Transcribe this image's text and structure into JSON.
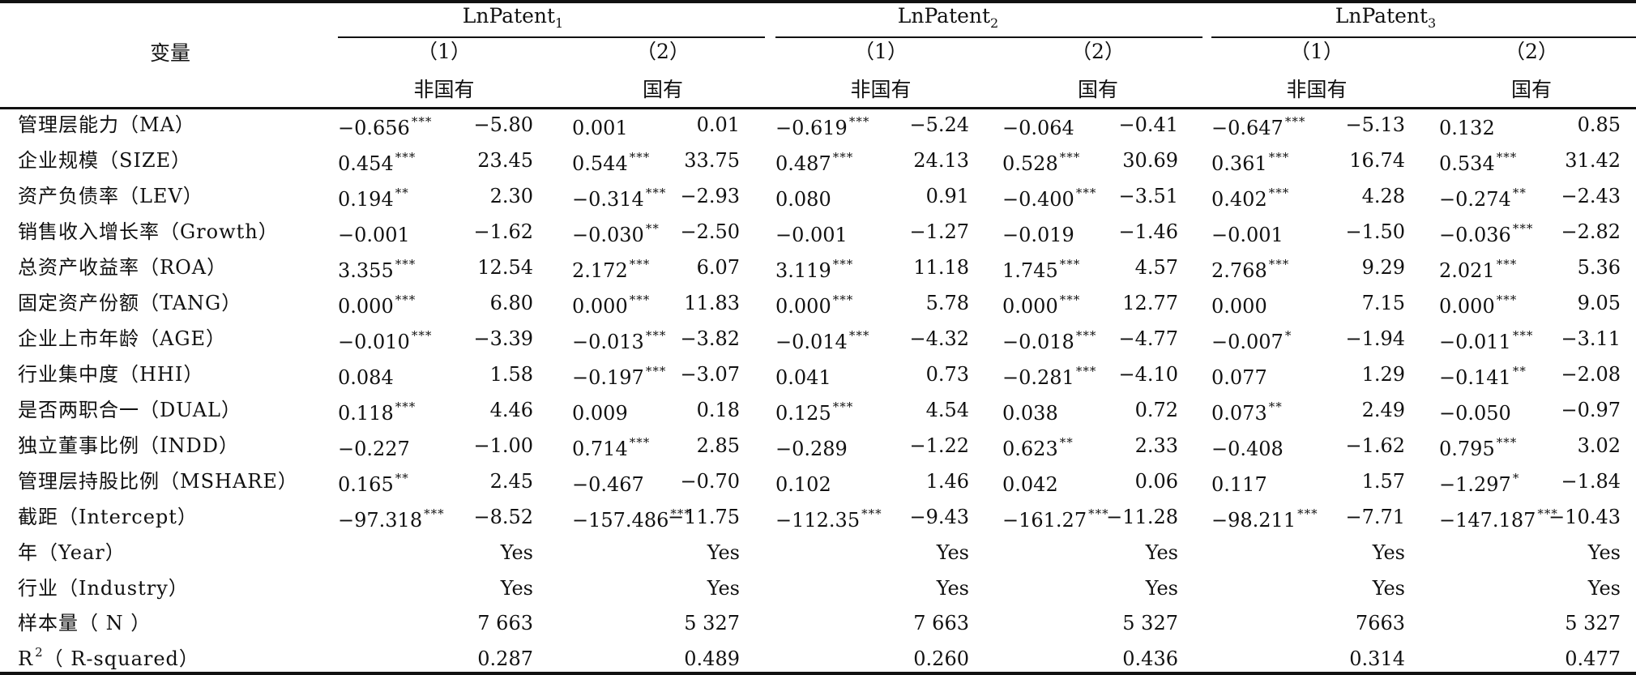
{
  "header": {
    "variable_label": "变量",
    "groups": [
      {
        "base": "LnPatent",
        "sub": "1",
        "cols": [
          {
            "num": "（1）",
            "label": "非国有"
          },
          {
            "num": "（2）",
            "label": "国有"
          }
        ]
      },
      {
        "base": "LnPatent",
        "sub": "2",
        "cols": [
          {
            "num": "（1）",
            "label": "非国有"
          },
          {
            "num": "（2）",
            "label": "国有"
          }
        ]
      },
      {
        "base": "LnPatent",
        "sub": "3",
        "cols": [
          {
            "num": "（1）",
            "label": "非国有"
          },
          {
            "num": "（2）",
            "label": "国有"
          }
        ]
      }
    ]
  },
  "rows": [
    {
      "name": "管理层能力（MA）",
      "cells": [
        [
          "−0.656",
          "***",
          "−5.80"
        ],
        [
          "0.001",
          "",
          "0.01"
        ],
        [
          "−0.619",
          "***",
          "−5.24"
        ],
        [
          "−0.064",
          "",
          "−0.41"
        ],
        [
          "−0.647",
          "***",
          "−5.13"
        ],
        [
          "0.132",
          "",
          "0.85"
        ]
      ]
    },
    {
      "name": "企业规模（SIZE）",
      "cells": [
        [
          "0.454",
          "***",
          "23.45"
        ],
        [
          "0.544",
          "***",
          "33.75"
        ],
        [
          "0.487",
          "***",
          "24.13"
        ],
        [
          "0.528",
          "***",
          "30.69"
        ],
        [
          "0.361",
          "***",
          "16.74"
        ],
        [
          "0.534",
          "***",
          "31.42"
        ]
      ]
    },
    {
      "name": "资产负债率（LEV）",
      "cells": [
        [
          "0.194",
          "**",
          "2.30"
        ],
        [
          "−0.314",
          "***",
          "−2.93"
        ],
        [
          "0.080",
          "",
          "0.91"
        ],
        [
          "−0.400",
          "***",
          "−3.51"
        ],
        [
          "0.402",
          "***",
          "4.28"
        ],
        [
          "−0.274",
          "**",
          "−2.43"
        ]
      ]
    },
    {
      "name": "销售收入增长率（Growth）",
      "cells": [
        [
          "−0.001",
          "",
          "−1.62"
        ],
        [
          "−0.030",
          "**",
          "−2.50"
        ],
        [
          "−0.001",
          "",
          "−1.27"
        ],
        [
          "−0.019",
          "",
          "−1.46"
        ],
        [
          "−0.001",
          "",
          "−1.50"
        ],
        [
          "−0.036",
          "***",
          "−2.82"
        ]
      ]
    },
    {
      "name": "总资产收益率（ROA）",
      "cells": [
        [
          "3.355",
          "***",
          "12.54"
        ],
        [
          "2.172",
          "***",
          "6.07"
        ],
        [
          "3.119",
          "***",
          "11.18"
        ],
        [
          "1.745",
          "***",
          "4.57"
        ],
        [
          "2.768",
          "***",
          "9.29"
        ],
        [
          "2.021",
          "***",
          "5.36"
        ]
      ]
    },
    {
      "name": "固定资产份额（TANG）",
      "cells": [
        [
          "0.000",
          "***",
          "6.80"
        ],
        [
          "0.000",
          "***",
          "11.83"
        ],
        [
          "0.000",
          "***",
          "5.78"
        ],
        [
          "0.000",
          "***",
          "12.77"
        ],
        [
          "0.000",
          "",
          "7.15"
        ],
        [
          "0.000",
          "***",
          "9.05"
        ]
      ]
    },
    {
      "name": "企业上市年龄（AGE）",
      "cells": [
        [
          "−0.010",
          "***",
          "−3.39"
        ],
        [
          "−0.013",
          "***",
          "−3.82"
        ],
        [
          "−0.014",
          "***",
          "−4.32"
        ],
        [
          "−0.018",
          "***",
          "−4.77"
        ],
        [
          "−0.007",
          "*",
          "−1.94"
        ],
        [
          "−0.011",
          "***",
          "−3.11"
        ]
      ]
    },
    {
      "name": "行业集中度（HHI）",
      "cells": [
        [
          "0.084",
          "",
          "1.58"
        ],
        [
          "−0.197",
          "***",
          "−3.07"
        ],
        [
          "0.041",
          "",
          "0.73"
        ],
        [
          "−0.281",
          "***",
          "−4.10"
        ],
        [
          "0.077",
          "",
          "1.29"
        ],
        [
          "−0.141",
          "**",
          "−2.08"
        ]
      ]
    },
    {
      "name": "是否两职合一（DUAL）",
      "cells": [
        [
          "0.118",
          "***",
          "4.46"
        ],
        [
          "0.009",
          "",
          "0.18"
        ],
        [
          "0.125",
          "***",
          "4.54"
        ],
        [
          "0.038",
          "",
          "0.72"
        ],
        [
          "0.073",
          "**",
          "2.49"
        ],
        [
          "−0.050",
          "",
          "−0.97"
        ]
      ]
    },
    {
      "name": "独立董事比例（INDD）",
      "cells": [
        [
          "−0.227",
          "",
          "−1.00"
        ],
        [
          "0.714",
          "***",
          "2.85"
        ],
        [
          "−0.289",
          "",
          "−1.22"
        ],
        [
          "0.623",
          "**",
          "2.33"
        ],
        [
          "−0.408",
          "",
          "−1.62"
        ],
        [
          "0.795",
          "***",
          "3.02"
        ]
      ]
    },
    {
      "name": "管理层持股比例（MSHARE）",
      "cells": [
        [
          "0.165",
          "**",
          "2.45"
        ],
        [
          "−0.467",
          "",
          "−0.70"
        ],
        [
          "0.102",
          "",
          "1.46"
        ],
        [
          "0.042",
          "",
          "0.06"
        ],
        [
          "0.117",
          "",
          "1.57"
        ],
        [
          "−1.297",
          "*",
          "−1.84"
        ]
      ]
    },
    {
      "name": "截距（Intercept）",
      "cells": [
        [
          "−97.318",
          "***",
          "−8.52"
        ],
        [
          "−157.486",
          "***",
          "−11.75"
        ],
        [
          "−112.35",
          "***",
          "−9.43"
        ],
        [
          "−161.27",
          "***",
          "−11.28"
        ],
        [
          "−98.211",
          "***",
          "−7.71"
        ],
        [
          "−147.187",
          "***",
          "−10.43"
        ]
      ]
    }
  ],
  "summary_rows": [
    {
      "name": "年（Year）",
      "values": [
        "Yes",
        "Yes",
        "Yes",
        "Yes",
        "Yes",
        "Yes"
      ]
    },
    {
      "name": "行业（Industry）",
      "values": [
        "Yes",
        "Yes",
        "Yes",
        "Yes",
        "Yes",
        "Yes"
      ]
    },
    {
      "name": "样本量（ N ）",
      "values": [
        "7 663",
        "5 327",
        "7 663",
        "5 327",
        "7663",
        "5 327"
      ]
    },
    {
      "name_base": "R",
      "name_sup": "2",
      "name_rest": "（ R-squared）",
      "values": [
        "0.287",
        "0.489",
        "0.260",
        "0.436",
        "0.314",
        "0.477"
      ]
    }
  ]
}
